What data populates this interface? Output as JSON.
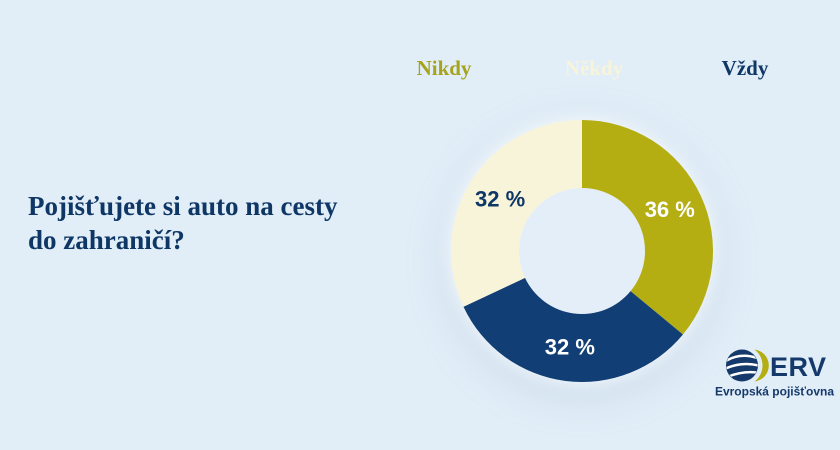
{
  "background_color": "#e1edf7",
  "title": {
    "text": "Pojišťujete si auto na cesty\ndo zahraničí?",
    "color": "#0f3766"
  },
  "legend": {
    "position": "top",
    "items": [
      {
        "label": "Nikdy",
        "color": "#a6a31c"
      },
      {
        "label": "Někdy",
        "color": "#f8f4da"
      },
      {
        "label": "Vždy",
        "color": "#0f3766"
      }
    ]
  },
  "chart_data": {
    "type": "pie",
    "subtype": "donut",
    "title": "Pojišťujete si auto na cesty do zahraničí?",
    "categories": [
      "Nikdy",
      "Někdy",
      "Vždy"
    ],
    "values": [
      36,
      32,
      32
    ],
    "unit": "%",
    "legend_position": "top",
    "start_angle_deg": 0,
    "direction": "clockwise",
    "segments": [
      {
        "category": "Nikdy",
        "value": 36,
        "label": "36 %",
        "color": "#b4ae13",
        "label_color": "#ffffff"
      },
      {
        "category": "Vždy",
        "value": 32,
        "label": "32 %",
        "color": "#113e74",
        "label_color": "#ffffff"
      },
      {
        "category": "Někdy",
        "value": 32,
        "label": "32 %",
        "color": "#f8f4da",
        "label_color": "#0f3766"
      }
    ],
    "hole_color": "#e3eef8"
  },
  "logo": {
    "brand": "ERV",
    "tagline": "Evropská pojišťovna",
    "navy": "#16396b",
    "yellow": "#b4ae13",
    "globe_line_color": "#ffffff"
  }
}
